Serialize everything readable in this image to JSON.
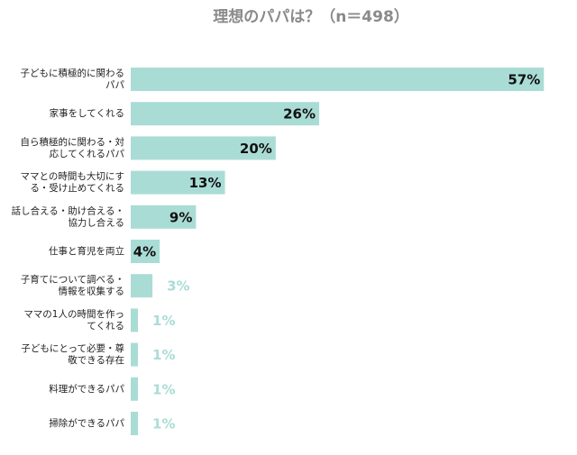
{
  "chart_data": {
    "type": "bar",
    "orientation": "horizontal",
    "title": "理想のパパは？（n＝498）",
    "categories": [
      "子どもに積極的に関わる\nパパ",
      "家事をしてくれる",
      "自ら積極的に関わる・対\n応してくれるパパ",
      "ママとの時間も大切にす\nる・受け止めてくれる",
      "話し合える・助け合える・\n協力し合える",
      "仕事と育児を両立",
      "子育てについて調べる・\n情報を収集する",
      "ママの1人の時間を作っ\nてくれる",
      "子どもにとって必要・尊\n敬できる存在",
      "料理ができるパパ",
      "掃除ができるパパ"
    ],
    "values": [
      57,
      26,
      20,
      13,
      9,
      4,
      3,
      1,
      1,
      1,
      1
    ],
    "value_labels": [
      "57%",
      "26%",
      "20%",
      "13%",
      "9%",
      "4%",
      "3%",
      "1%",
      "1%",
      "1%",
      "1%"
    ],
    "color": "#aadcd6",
    "label_outside_color": "#aadcd6"
  }
}
